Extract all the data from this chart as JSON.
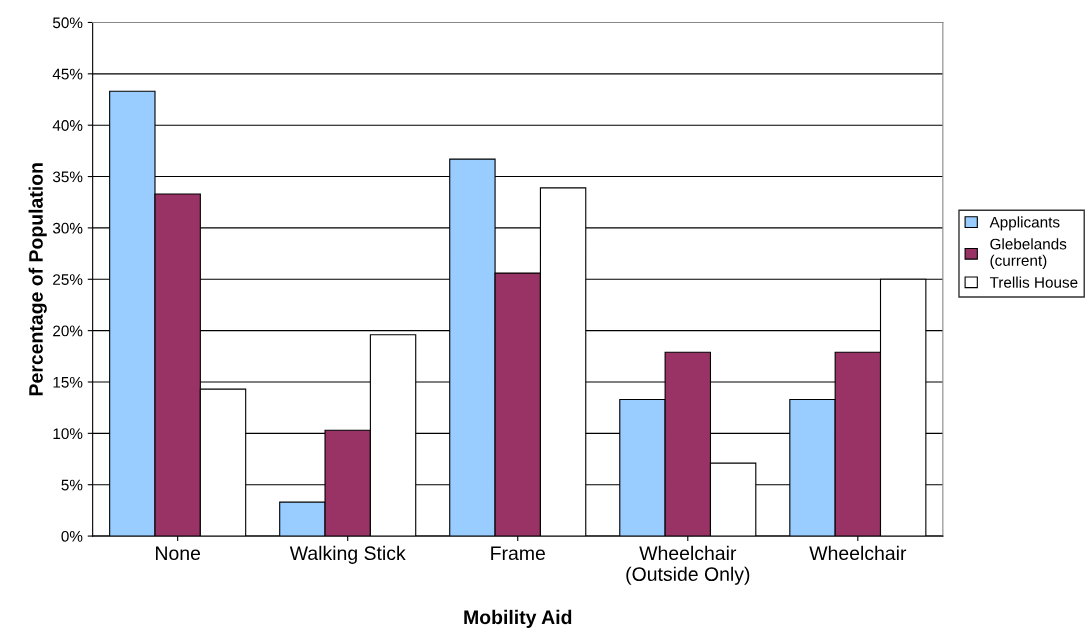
{
  "chart_data": {
    "type": "bar",
    "xlabel": "Mobility Aid",
    "ylabel": "Percentage of Population",
    "categories": [
      "None",
      "Walking Stick",
      "Frame",
      "Wheelchair\n(Outside Only)",
      "Wheelchair"
    ],
    "series": [
      {
        "name": "Applicants",
        "color": "#99ccff",
        "values": [
          43.3,
          3.3,
          36.7,
          13.3,
          13.3
        ]
      },
      {
        "name": "Glebelands\n(current)",
        "color": "#993366",
        "values": [
          33.3,
          10.3,
          25.6,
          17.9,
          17.9
        ]
      },
      {
        "name": "Trellis House",
        "color": "#ffffff",
        "values": [
          14.3,
          19.6,
          33.9,
          7.1,
          25.0
        ]
      }
    ],
    "ylim": [
      0,
      50
    ],
    "yticks": [
      {
        "value": 0,
        "label": "0%"
      },
      {
        "value": 5,
        "label": "5%"
      },
      {
        "value": 10,
        "label": "10%"
      },
      {
        "value": 15,
        "label": "15%"
      },
      {
        "value": 20,
        "label": "20%"
      },
      {
        "value": 25,
        "label": "25%"
      },
      {
        "value": 30,
        "label": "30%"
      },
      {
        "value": 35,
        "label": "35%"
      },
      {
        "value": 40,
        "label": "40%"
      },
      {
        "value": 45,
        "label": "45%"
      },
      {
        "value": 50,
        "label": "50%"
      }
    ],
    "grid": "y",
    "legend": "right"
  }
}
